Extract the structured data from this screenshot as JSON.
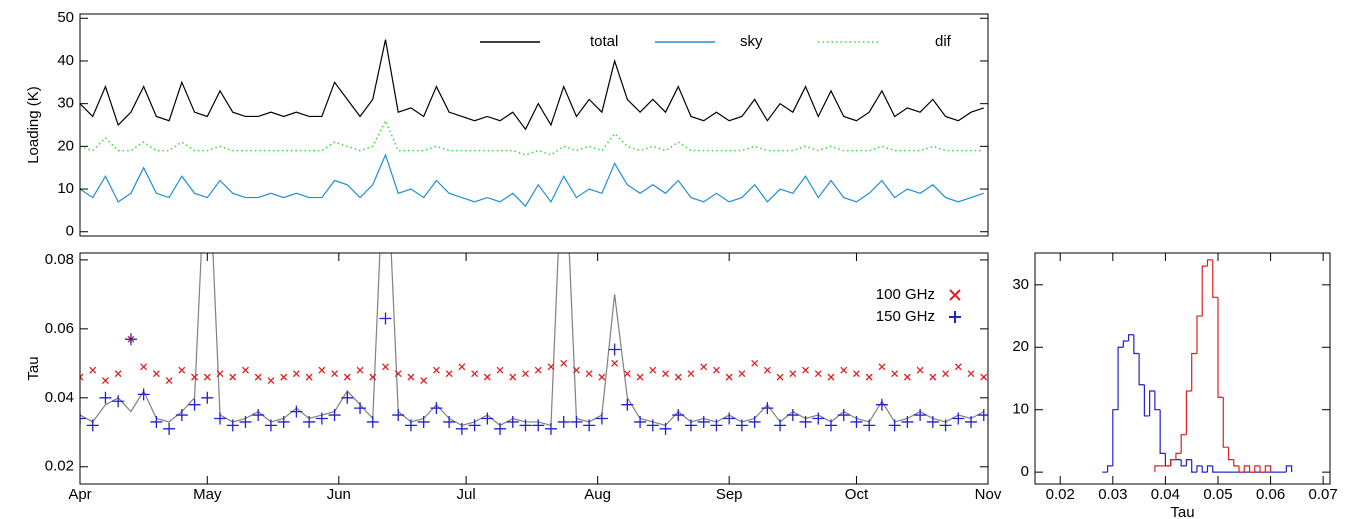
{
  "chart_data": [
    {
      "type": "line",
      "ylabel": "Loading (K)",
      "xlim": [
        0,
        214
      ],
      "ylim": [
        -1,
        51
      ],
      "yticks": [
        0,
        10,
        20,
        30,
        40,
        50
      ],
      "legend": "top",
      "x": [
        0,
        3,
        6,
        9,
        12,
        15,
        18,
        21,
        24,
        27,
        30,
        33,
        36,
        39,
        42,
        45,
        48,
        51,
        54,
        57,
        60,
        63,
        66,
        69,
        72,
        75,
        78,
        81,
        84,
        87,
        90,
        93,
        96,
        99,
        102,
        105,
        108,
        111,
        114,
        117,
        120,
        123,
        126,
        129,
        132,
        135,
        138,
        141,
        144,
        147,
        150,
        153,
        156,
        159,
        162,
        165,
        168,
        171,
        174,
        177,
        180,
        183,
        186,
        189,
        192,
        195,
        198,
        201,
        204,
        207,
        210,
        213
      ],
      "series": [
        {
          "name": "total",
          "color": "#000000",
          "linestyle": "solid",
          "values": [
            30,
            27,
            34,
            25,
            28,
            34,
            27,
            26,
            35,
            28,
            27,
            33,
            28,
            27,
            27,
            28,
            27,
            28,
            27,
            27,
            35,
            31,
            27,
            31,
            45,
            28,
            29,
            27,
            34,
            28,
            27,
            26,
            27,
            26,
            28,
            24,
            30,
            25,
            34,
            27,
            31,
            28,
            40,
            31,
            28,
            31,
            28,
            34,
            27,
            26,
            28,
            26,
            27,
            31,
            26,
            30,
            28,
            34,
            27,
            33,
            27,
            26,
            28,
            33,
            27,
            29,
            28,
            31,
            27,
            26,
            28,
            29
          ]
        },
        {
          "name": "sky",
          "color": "#1f8fd6",
          "linestyle": "solid",
          "values": [
            10,
            8,
            13,
            7,
            9,
            15,
            9,
            8,
            13,
            9,
            8,
            12,
            9,
            8,
            8,
            9,
            8,
            9,
            8,
            8,
            12,
            11,
            8,
            11,
            18,
            9,
            10,
            8,
            12,
            9,
            8,
            7,
            8,
            7,
            9,
            6,
            11,
            7,
            13,
            8,
            10,
            9,
            16,
            11,
            9,
            11,
            9,
            12,
            8,
            7,
            9,
            7,
            8,
            11,
            7,
            10,
            9,
            13,
            8,
            12,
            8,
            7,
            9,
            12,
            8,
            10,
            9,
            11,
            8,
            7,
            8,
            9
          ]
        },
        {
          "name": "dif",
          "color": "#33dd33",
          "linestyle": "dotted",
          "values": [
            20,
            19,
            22,
            19,
            19,
            21,
            19,
            19,
            21,
            19,
            19,
            20,
            19,
            19,
            19,
            19,
            19,
            19,
            19,
            19,
            21,
            20,
            19,
            20,
            26,
            19,
            19,
            19,
            20,
            19,
            19,
            19,
            19,
            19,
            19,
            18,
            19,
            18,
            20,
            19,
            20,
            19,
            23,
            20,
            19,
            20,
            19,
            21,
            19,
            19,
            19,
            19,
            19,
            20,
            19,
            19,
            19,
            20,
            19,
            20,
            19,
            19,
            19,
            20,
            19,
            19,
            19,
            20,
            19,
            19,
            19,
            19
          ]
        }
      ]
    },
    {
      "type": "line",
      "ylabel": "Tau",
      "xlim": [
        0,
        214
      ],
      "ylim": [
        0.015,
        0.082
      ],
      "yticks": [
        0.02,
        0.04,
        0.06,
        0.08
      ],
      "legend": "right",
      "xticks": [
        {
          "value": 0,
          "label": "Apr"
        },
        {
          "value": 30,
          "label": "May"
        },
        {
          "value": 61,
          "label": "Jun"
        },
        {
          "value": 91,
          "label": "Jul"
        },
        {
          "value": 122,
          "label": "Aug"
        },
        {
          "value": 153,
          "label": "Sep"
        },
        {
          "value": 183,
          "label": "Oct"
        },
        {
          "value": 214,
          "label": "Nov"
        }
      ],
      "x": [
        0,
        3,
        6,
        9,
        12,
        15,
        18,
        21,
        24,
        27,
        30,
        33,
        36,
        39,
        42,
        45,
        48,
        51,
        54,
        57,
        60,
        63,
        66,
        69,
        72,
        75,
        78,
        81,
        84,
        87,
        90,
        93,
        96,
        99,
        102,
        105,
        108,
        111,
        114,
        117,
        120,
        123,
        126,
        129,
        132,
        135,
        138,
        141,
        144,
        147,
        150,
        153,
        156,
        159,
        162,
        165,
        168,
        171,
        174,
        177,
        180,
        183,
        186,
        189,
        192,
        195,
        198,
        201,
        204,
        207,
        210,
        213
      ],
      "series": [
        {
          "color": "#808080",
          "linestyle": "solid",
          "values": [
            0.035,
            0.033,
            0.038,
            0.04,
            0.036,
            0.042,
            0.034,
            0.033,
            0.036,
            0.04,
            0.12,
            0.035,
            0.033,
            0.034,
            0.036,
            0.033,
            0.034,
            0.037,
            0.034,
            0.035,
            0.036,
            0.042,
            0.038,
            0.034,
            0.12,
            0.036,
            0.033,
            0.034,
            0.038,
            0.034,
            0.032,
            0.033,
            0.035,
            0.032,
            0.034,
            0.033,
            0.033,
            0.032,
            0.12,
            0.034,
            0.033,
            0.035,
            0.07,
            0.04,
            0.034,
            0.033,
            0.032,
            0.036,
            0.033,
            0.034,
            0.033,
            0.035,
            0.033,
            0.034,
            0.038,
            0.033,
            0.036,
            0.034,
            0.035,
            0.033,
            0.036,
            0.034,
            0.033,
            0.039,
            0.033,
            0.034,
            0.036,
            0.034,
            0.033,
            0.035,
            0.034,
            0.036
          ]
        },
        {
          "name": "100 GHz",
          "color": "#e02020",
          "marker": "x",
          "values": [
            0.046,
            0.048,
            0.045,
            0.047,
            0.057,
            0.049,
            0.047,
            0.045,
            0.048,
            0.046,
            0.046,
            0.047,
            0.046,
            0.048,
            0.046,
            0.045,
            0.046,
            0.047,
            0.046,
            0.048,
            0.047,
            0.046,
            0.048,
            0.046,
            0.049,
            0.047,
            0.046,
            0.045,
            0.048,
            0.047,
            0.049,
            0.047,
            0.046,
            0.048,
            0.046,
            0.047,
            0.048,
            0.049,
            0.05,
            0.048,
            0.047,
            0.046,
            0.05,
            0.047,
            0.046,
            0.048,
            0.047,
            0.046,
            0.047,
            0.049,
            0.048,
            0.046,
            0.047,
            0.05,
            0.048,
            0.046,
            0.047,
            0.048,
            0.047,
            0.046,
            0.048,
            0.047,
            0.046,
            0.049,
            0.047,
            0.046,
            0.048,
            0.046,
            0.047,
            0.049,
            0.047,
            0.046
          ]
        },
        {
          "name": "150 GHz",
          "color": "#2020d0",
          "marker": "+",
          "values": [
            0.034,
            0.032,
            0.04,
            0.039,
            0.057,
            0.041,
            0.033,
            0.031,
            0.035,
            0.038,
            0.04,
            0.034,
            0.032,
            0.033,
            0.035,
            0.032,
            0.033,
            0.036,
            0.033,
            0.034,
            0.035,
            0.04,
            0.037,
            0.033,
            0.063,
            0.035,
            0.032,
            0.033,
            0.037,
            0.033,
            0.031,
            0.032,
            0.034,
            0.031,
            0.033,
            0.032,
            0.032,
            0.031,
            0.033,
            0.033,
            0.032,
            0.034,
            0.054,
            0.038,
            0.033,
            0.032,
            0.031,
            0.035,
            0.032,
            0.033,
            0.032,
            0.034,
            0.032,
            0.033,
            0.037,
            0.032,
            0.035,
            0.033,
            0.034,
            0.032,
            0.035,
            0.033,
            0.032,
            0.038,
            0.032,
            0.033,
            0.035,
            0.033,
            0.032,
            0.034,
            0.033,
            0.035
          ]
        }
      ]
    },
    {
      "type": "histogram",
      "xlabel": "Tau",
      "xlim": [
        0.0152,
        0.0713
      ],
      "ylim": [
        -1.9,
        35.1
      ],
      "xticks": [
        0.02,
        0.03,
        0.04,
        0.05,
        0.06,
        0.07
      ],
      "yticks": [
        0,
        10,
        20,
        30
      ],
      "series": [
        {
          "color": "#2020d0",
          "bins": [
            0.028,
            0.029,
            0.03,
            0.031,
            0.032,
            0.033,
            0.034,
            0.035,
            0.036,
            0.037,
            0.038,
            0.039,
            0.04,
            0.041,
            0.042,
            0.043,
            0.044,
            0.045,
            0.046,
            0.047,
            0.048,
            0.049,
            0.05,
            0.051,
            0.052,
            0.053,
            0.054,
            0.055,
            0.056,
            0.057,
            0.058,
            0.059,
            0.06,
            0.061,
            0.062,
            0.063,
            0.064
          ],
          "values": [
            0,
            1,
            10,
            20,
            21,
            22,
            19,
            14,
            9,
            13,
            10,
            3,
            1,
            2,
            2,
            1,
            2,
            0,
            1,
            0,
            1,
            0,
            0,
            0,
            0,
            0,
            0,
            0,
            0,
            0,
            0,
            0,
            0,
            0,
            0,
            1
          ]
        },
        {
          "color": "#e02020",
          "bins": [
            0.038,
            0.039,
            0.04,
            0.041,
            0.042,
            0.043,
            0.044,
            0.045,
            0.046,
            0.047,
            0.048,
            0.049,
            0.05,
            0.051,
            0.052,
            0.053,
            0.054,
            0.055,
            0.056,
            0.057,
            0.058,
            0.059,
            0.06
          ],
          "values": [
            1,
            1,
            1,
            2,
            3,
            6,
            13,
            19,
            25,
            33,
            34,
            28,
            12,
            4,
            2,
            1,
            0,
            1,
            0,
            1,
            0,
            1
          ]
        }
      ]
    }
  ]
}
